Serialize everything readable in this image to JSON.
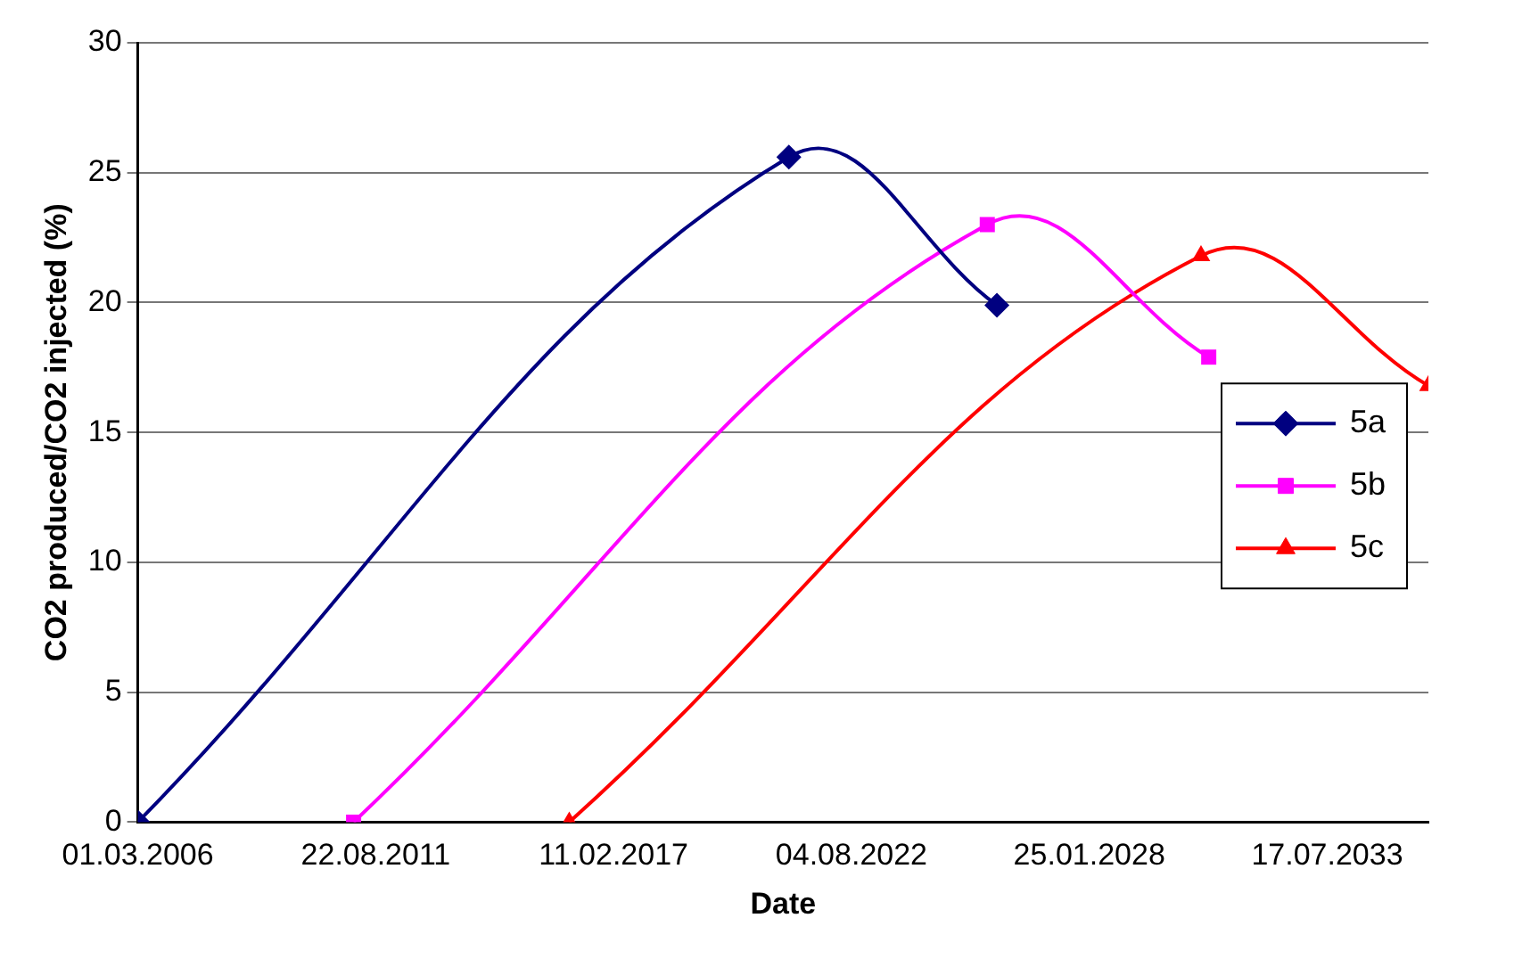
{
  "chart_data": {
    "type": "line",
    "xlabel": "Date",
    "ylabel": "CO2 produced/CO2 injected (%)",
    "xlim": [
      "2006-03-01",
      "2035-11-15"
    ],
    "xticks": [
      {
        "value": "2006-03-01",
        "label": "01.03.2006"
      },
      {
        "value": "2011-08-22",
        "label": "22.08.2011"
      },
      {
        "value": "2017-02-11",
        "label": "11.02.2017"
      },
      {
        "value": "2022-08-04",
        "label": "04.08.2022"
      },
      {
        "value": "2028-01-25",
        "label": "25.01.2028"
      },
      {
        "value": "2033-07-17",
        "label": "17.07.2033"
      }
    ],
    "ylim": [
      0,
      30
    ],
    "yticks": [
      0,
      5,
      10,
      15,
      20,
      25,
      30
    ],
    "grid": "y",
    "legend": "right",
    "series": [
      {
        "name": "5a",
        "color": "#000080",
        "marker": "diamond",
        "x": [
          "2006-03-01",
          "2021-02-24",
          "2025-12-09"
        ],
        "values": [
          0,
          25.6,
          19.9
        ]
      },
      {
        "name": "5b",
        "color": "#ff00ff",
        "marker": "square",
        "x": [
          "2011-02-17",
          "2025-09-19",
          "2030-10-25"
        ],
        "values": [
          0,
          23.0,
          17.9
        ]
      },
      {
        "name": "5c",
        "color": "#ff0000",
        "marker": "triangle",
        "x": [
          "2016-02-04",
          "2030-08-21",
          "2035-11-15"
        ],
        "values": [
          0,
          21.8,
          16.8
        ]
      }
    ]
  }
}
